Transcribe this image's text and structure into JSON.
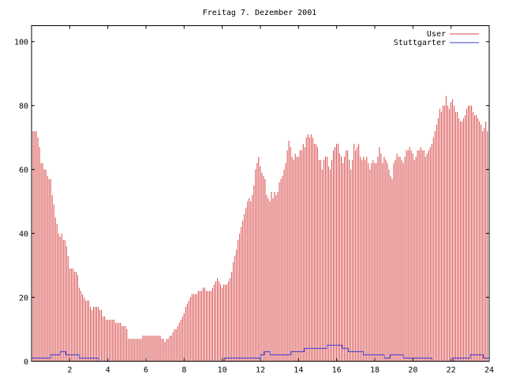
{
  "chart_data": {
    "type": "bar",
    "title": "Freitag 7. Dezember 2001",
    "xlabel": "",
    "ylabel": "",
    "xlim": [
      0,
      24
    ],
    "ylim": [
      0,
      105
    ],
    "xticks": [
      2,
      4,
      6,
      8,
      10,
      12,
      14,
      16,
      18,
      20,
      22,
      24
    ],
    "yticks": [
      0,
      20,
      40,
      60,
      80,
      100
    ],
    "legend_position": "top-right",
    "series": [
      {
        "name": "User",
        "color": "#d94a4a",
        "style": "impulses",
        "x_start": 0.0,
        "x_step": 0.0833,
        "values": [
          74,
          72,
          72,
          72,
          70,
          67,
          62,
          62,
          60,
          60,
          58,
          57,
          57,
          52,
          49,
          45,
          43,
          40,
          39,
          40,
          38,
          38,
          36,
          33,
          29,
          29,
          29,
          28,
          28,
          27,
          23,
          22,
          21,
          20,
          19,
          19,
          19,
          17,
          16,
          17,
          17,
          17,
          17,
          16,
          16,
          14,
          14,
          13,
          13,
          13,
          13,
          13,
          13,
          12,
          12,
          12,
          12,
          11,
          11,
          11,
          10,
          7,
          7,
          7,
          7,
          7,
          7,
          7,
          7,
          7,
          8,
          8,
          8,
          8,
          8,
          8,
          8,
          8,
          8,
          8,
          8,
          8,
          7,
          7,
          6,
          7,
          7,
          8,
          8,
          9,
          10,
          10,
          11,
          12,
          13,
          14,
          15,
          17,
          18,
          19,
          20,
          21,
          21,
          21,
          21,
          22,
          22,
          22,
          23,
          23,
          22,
          22,
          22,
          22,
          23,
          24,
          25,
          26,
          25,
          24,
          23,
          24,
          24,
          24,
          25,
          26,
          28,
          31,
          33,
          35,
          38,
          40,
          42,
          44,
          46,
          48,
          50,
          51,
          50,
          52,
          55,
          60,
          62,
          64,
          61,
          59,
          58,
          57,
          52,
          51,
          50,
          53,
          51,
          53,
          52,
          53,
          56,
          57,
          58,
          60,
          62,
          66,
          69,
          67,
          64,
          63,
          65,
          64,
          64,
          66,
          66,
          68,
          67,
          70,
          71,
          70,
          71,
          70,
          68,
          68,
          67,
          63,
          63,
          60,
          63,
          64,
          64,
          61,
          60,
          63,
          66,
          67,
          68,
          68,
          65,
          64,
          62,
          64,
          66,
          66,
          63,
          60,
          63,
          68,
          66,
          67,
          68,
          64,
          63,
          64,
          63,
          64,
          62,
          60,
          62,
          63,
          62,
          62,
          64,
          67,
          65,
          62,
          64,
          63,
          62,
          60,
          58,
          57,
          62,
          63,
          65,
          64,
          64,
          63,
          62,
          64,
          66,
          66,
          67,
          66,
          65,
          63,
          64,
          66,
          66,
          67,
          66,
          66,
          64,
          65,
          66,
          67,
          68,
          70,
          72,
          74,
          76,
          79,
          78,
          80,
          80,
          83,
          80,
          79,
          81,
          82,
          80,
          78,
          78,
          76,
          75,
          75,
          76,
          77,
          79,
          80,
          80,
          80,
          78,
          77,
          77,
          76,
          75,
          74,
          72,
          73,
          75,
          72
        ]
      },
      {
        "name": "Stuttgarter",
        "color": "#3b3bd6",
        "style": "line",
        "x": [
          0,
          0.7,
          1.0,
          1.2,
          1.5,
          1.8,
          2.3,
          2.5,
          3.2,
          3.5,
          3.55,
          9.9,
          10.1,
          10.3,
          10.6,
          11.8,
          12.0,
          12.2,
          12.5,
          13.2,
          13.6,
          14.2,
          14.3,
          15.2,
          15.5,
          16.0,
          16.3,
          16.6,
          17.2,
          17.4,
          18.3,
          18.5,
          18.8,
          19.5,
          20.9,
          21.0,
          21.3,
          22.0,
          22.1,
          22.8,
          23.0,
          23.6,
          23.7,
          24.0
        ],
        "y": [
          1,
          1,
          2,
          2,
          3,
          2,
          2,
          1,
          1,
          0,
          0,
          0,
          1,
          1,
          1,
          1,
          2,
          3,
          2,
          2,
          3,
          3,
          4,
          4,
          5,
          5,
          4,
          3,
          3,
          2,
          2,
          1,
          2,
          1,
          1,
          0,
          0,
          0,
          1,
          1,
          2,
          2,
          1,
          1
        ]
      }
    ]
  }
}
